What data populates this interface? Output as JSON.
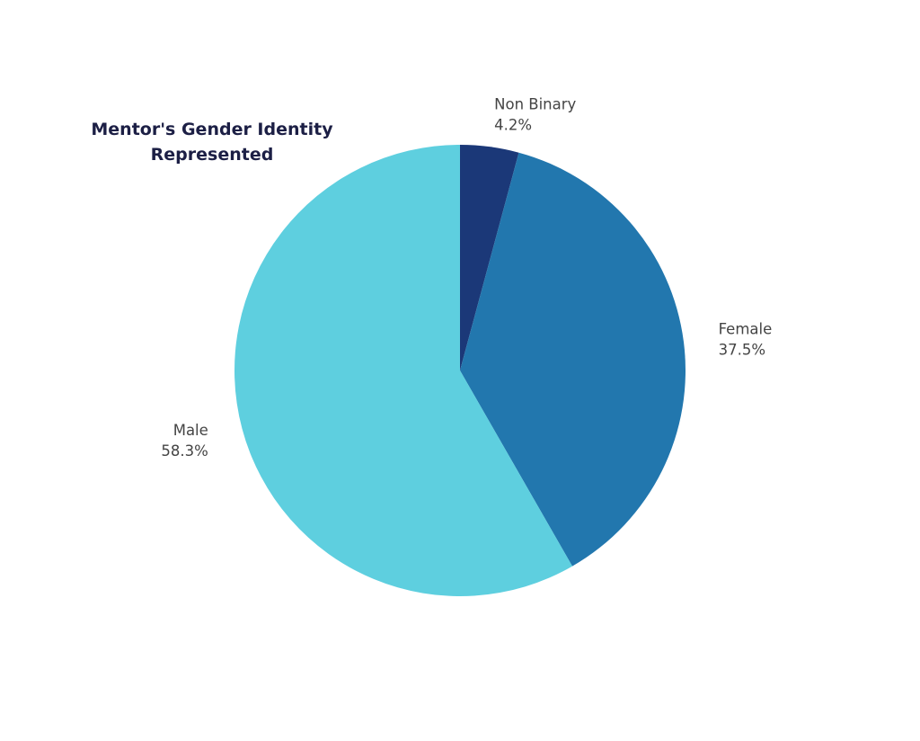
{
  "chart_data": {
    "type": "pie",
    "title": "Mentor's Gender Identity Represented",
    "start_angle": "12 o'clock",
    "direction": "clockwise",
    "slices": [
      {
        "label": "Non Binary",
        "value": 4.2,
        "value_label": "4.2%",
        "color": "#1b3878"
      },
      {
        "label": "Female",
        "value": 37.5,
        "value_label": "37.5%",
        "color": "#2277ae"
      },
      {
        "label": "Male",
        "value": 58.3,
        "value_label": "58.3%",
        "color": "#5ecfdf"
      }
    ]
  }
}
